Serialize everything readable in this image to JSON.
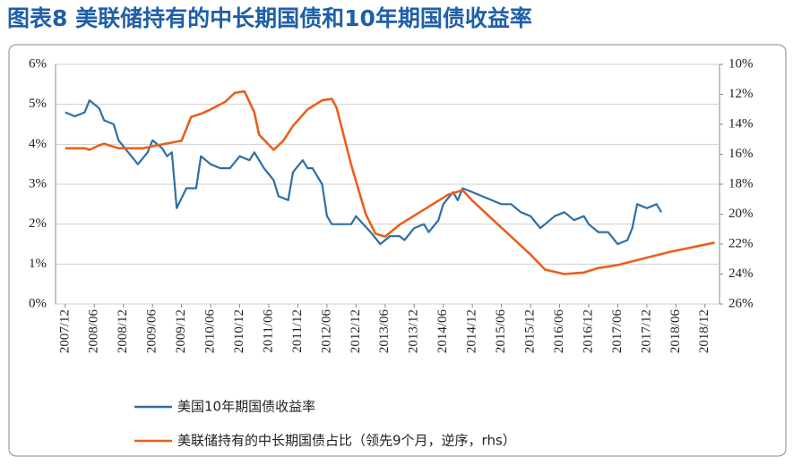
{
  "chart_data": {
    "type": "line",
    "title": "图表8 美联储持有的中长期国债和10年期国债收益率",
    "xlim": [
      "2007/10",
      "2019/03"
    ],
    "xticks": [
      "2007/12",
      "2008/06",
      "2008/12",
      "2009/06",
      "2009/12",
      "2010/06",
      "2010/12",
      "2011/06",
      "2011/12",
      "2012/06",
      "2012/12",
      "2013/06",
      "2013/12",
      "2014/06",
      "2014/12",
      "2015/06",
      "2015/12",
      "2016/06",
      "2016/12",
      "2017/06",
      "2017/12",
      "2018/06",
      "2018/12"
    ],
    "ylim": [
      0,
      6
    ],
    "yticks": [
      {
        "value": 0,
        "label": "0%"
      },
      {
        "value": 1,
        "label": "1%"
      },
      {
        "value": 2,
        "label": "2%"
      },
      {
        "value": 3,
        "label": "3%"
      },
      {
        "value": 4,
        "label": "4%"
      },
      {
        "value": 5,
        "label": "5%"
      },
      {
        "value": 6,
        "label": "6%"
      }
    ],
    "y2lim": [
      26,
      10
    ],
    "y2ticks": [
      {
        "value": 10,
        "label": "10%"
      },
      {
        "value": 12,
        "label": "12%"
      },
      {
        "value": 14,
        "label": "14%"
      },
      {
        "value": 16,
        "label": "16%"
      },
      {
        "value": 18,
        "label": "18%"
      },
      {
        "value": 20,
        "label": "20%"
      },
      {
        "value": 22,
        "label": "22%"
      },
      {
        "value": 24,
        "label": "24%"
      },
      {
        "value": 26,
        "label": "26%"
      }
    ],
    "grid": true,
    "series": [
      {
        "name": "美国10年期国债收益率",
        "color": "#2e6fa5",
        "x": [
          "2007/12",
          "2008/02",
          "2008/04",
          "2008/05",
          "2008/07",
          "2008/08",
          "2008/10",
          "2008/11",
          "2009/01",
          "2009/03",
          "2009/05",
          "2009/06",
          "2009/08",
          "2009/09",
          "2009/10",
          "2009/11",
          "2010/01",
          "2010/03",
          "2010/04",
          "2010/06",
          "2010/08",
          "2010/10",
          "2010/12",
          "2011/02",
          "2011/03",
          "2011/05",
          "2011/07",
          "2011/08",
          "2011/10",
          "2011/11",
          "2012/01",
          "2012/02",
          "2012/03",
          "2012/05",
          "2012/06",
          "2012/07",
          "2012/09",
          "2012/11",
          "2012/12",
          "2013/03",
          "2013/05",
          "2013/07",
          "2013/09",
          "2013/10",
          "2013/12",
          "2014/02",
          "2014/03",
          "2014/05",
          "2014/06",
          "2014/08",
          "2014/09",
          "2014/10",
          "2014/12",
          "2015/02",
          "2015/04",
          "2015/06",
          "2015/08",
          "2015/10",
          "2015/12",
          "2016/02",
          "2016/03",
          "2016/05",
          "2016/07",
          "2016/09",
          "2016/11",
          "2016/12",
          "2017/02",
          "2017/04",
          "2017/06",
          "2017/08",
          "2017/09",
          "2017/10",
          "2017/12",
          "2018/02",
          "2018/03"
        ],
        "values": [
          4.8,
          4.7,
          4.8,
          5.1,
          4.9,
          4.6,
          4.5,
          4.1,
          3.8,
          3.5,
          3.8,
          4.1,
          3.9,
          3.7,
          3.8,
          2.4,
          2.9,
          2.9,
          3.7,
          3.5,
          3.4,
          3.4,
          3.7,
          3.6,
          3.8,
          3.4,
          3.1,
          2.7,
          2.6,
          3.3,
          3.6,
          3.4,
          3.4,
          3.0,
          2.2,
          2.0,
          2.0,
          2.0,
          2.2,
          1.8,
          1.5,
          1.7,
          1.7,
          1.6,
          1.9,
          2.0,
          1.8,
          2.1,
          2.5,
          2.8,
          2.6,
          2.9,
          2.8,
          2.7,
          2.6,
          2.5,
          2.5,
          2.3,
          2.2,
          1.9,
          2.0,
          2.2,
          2.3,
          2.1,
          2.2,
          2.0,
          1.8,
          1.8,
          1.5,
          1.6,
          1.9,
          2.5,
          2.4,
          2.5,
          2.3
        ]
      },
      {
        "name": "美联储持有的中长期国债占比（领先9个月，逆序，rhs）",
        "color": "#e8601c",
        "axis": "y2",
        "x": [
          "2007/12",
          "2008/04",
          "2008/05",
          "2008/07",
          "2008/08",
          "2008/11",
          "2009/04",
          "2009/07",
          "2009/12",
          "2010/02",
          "2010/04",
          "2010/06",
          "2010/09",
          "2010/11",
          "2011/01",
          "2011/03",
          "2011/04",
          "2011/07",
          "2011/09",
          "2011/11",
          "2012/02",
          "2012/05",
          "2012/07",
          "2012/08",
          "2012/11",
          "2013/02",
          "2013/04",
          "2013/06",
          "2013/09",
          "2014/01",
          "2014/04",
          "2014/07",
          "2014/10",
          "2014/12",
          "2015/06",
          "2015/12",
          "2016/03",
          "2016/07",
          "2016/11",
          "2017/02",
          "2017/06",
          "2017/12",
          "2018/05",
          "2018/11",
          "2019/02"
        ],
        "values": [
          15.6,
          15.6,
          15.7,
          15.4,
          15.3,
          15.6,
          15.6,
          15.4,
          15.1,
          13.5,
          13.3,
          13.0,
          12.5,
          11.9,
          11.8,
          13.2,
          14.7,
          15.7,
          15.1,
          14.1,
          13.0,
          12.4,
          12.3,
          12.9,
          16.7,
          20.0,
          21.3,
          21.5,
          20.7,
          19.9,
          19.3,
          18.7,
          18.4,
          19.1,
          20.9,
          22.7,
          23.7,
          24.0,
          23.9,
          23.6,
          23.4,
          22.9,
          22.5,
          22.1,
          21.9
        ]
      }
    ]
  }
}
